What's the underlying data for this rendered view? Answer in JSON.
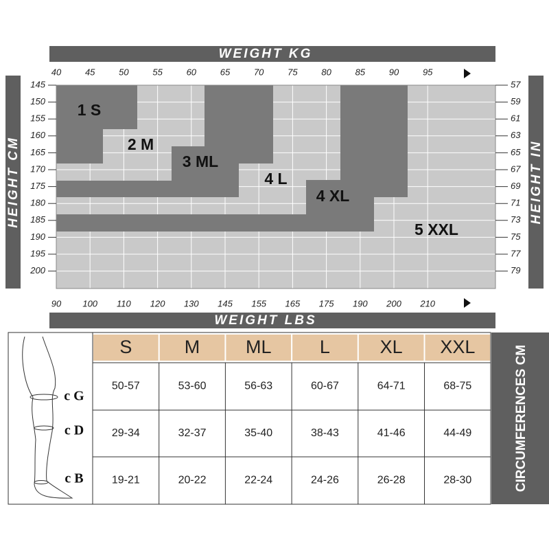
{
  "chart": {
    "top_title": "WEIGHT KG",
    "bottom_title": "WEIGHT LBS",
    "left_title": "HEIGHT CM",
    "right_title": "HEIGHT IN",
    "kg_ticks": [
      "40",
      "45",
      "50",
      "55",
      "60",
      "65",
      "70",
      "75",
      "80",
      "85",
      "90",
      "95"
    ],
    "lbs_ticks": [
      "90",
      "100",
      "110",
      "120",
      "130",
      "145",
      "155",
      "165",
      "175",
      "190",
      "200",
      "210"
    ],
    "cm_ticks": [
      "145",
      "150",
      "155",
      "160",
      "165",
      "170",
      "175",
      "180",
      "185",
      "190",
      "195",
      "200"
    ],
    "in_ticks": [
      "57",
      "59",
      "61",
      "63",
      "65",
      "67",
      "69",
      "71",
      "73",
      "75",
      "77",
      "79"
    ],
    "sizes": [
      "1 S",
      "2 M",
      "3 ML",
      "4 L",
      "4 XL",
      "5 XXL"
    ]
  },
  "table": {
    "side_title": "CIRCUMFERENCES CM",
    "header": [
      "S",
      "M",
      "ML",
      "L",
      "XL",
      "XXL"
    ],
    "row_labels": [
      "c G",
      "c D",
      "c B"
    ],
    "rows": [
      [
        "50-57",
        "53-60",
        "56-63",
        "60-67",
        "64-71",
        "68-75"
      ],
      [
        "29-34",
        "32-37",
        "35-40",
        "38-43",
        "41-46",
        "44-49"
      ],
      [
        "19-21",
        "20-22",
        "22-24",
        "24-26",
        "26-28",
        "28-30"
      ]
    ]
  }
}
